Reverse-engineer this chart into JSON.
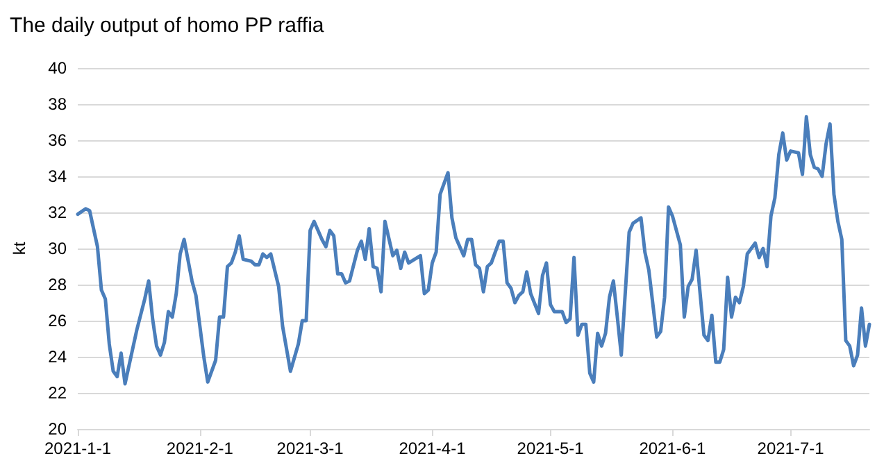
{
  "chart_data": {
    "type": "line",
    "title": "The daily output of homo PP raffia",
    "ylabel": "kt",
    "x": [
      "2021-01-01",
      "2021-01-03",
      "2021-01-04",
      "2021-01-06",
      "2021-01-07",
      "2021-01-08",
      "2021-01-09",
      "2021-01-10",
      "2021-01-11",
      "2021-01-12",
      "2021-01-13",
      "2021-01-16",
      "2021-01-18",
      "2021-01-19",
      "2021-01-20",
      "2021-01-21",
      "2021-01-22",
      "2021-01-23",
      "2021-01-24",
      "2021-01-25",
      "2021-01-26",
      "2021-01-27",
      "2021-01-28",
      "2021-01-30",
      "2021-01-31",
      "2021-02-02",
      "2021-02-03",
      "2021-02-05",
      "2021-02-06",
      "2021-02-07",
      "2021-02-08",
      "2021-02-09",
      "2021-02-10",
      "2021-02-11",
      "2021-02-12",
      "2021-02-14",
      "2021-02-15",
      "2021-02-16",
      "2021-02-17",
      "2021-02-18",
      "2021-02-19",
      "2021-02-21",
      "2021-02-22",
      "2021-02-24",
      "2021-02-26",
      "2021-02-27",
      "2021-02-28",
      "2021-03-01",
      "2021-03-02",
      "2021-03-04",
      "2021-03-05",
      "2021-03-06",
      "2021-03-07",
      "2021-03-08",
      "2021-03-09",
      "2021-03-10",
      "2021-03-11",
      "2021-03-13",
      "2021-03-14",
      "2021-03-15",
      "2021-03-16",
      "2021-03-17",
      "2021-03-18",
      "2021-03-19",
      "2021-03-20",
      "2021-03-22",
      "2021-03-23",
      "2021-03-24",
      "2021-03-25",
      "2021-03-26",
      "2021-03-29",
      "2021-03-30",
      "2021-03-31",
      "2021-04-01",
      "2021-04-02",
      "2021-04-03",
      "2021-04-05",
      "2021-04-06",
      "2021-04-07",
      "2021-04-09",
      "2021-04-10",
      "2021-04-11",
      "2021-04-12",
      "2021-04-13",
      "2021-04-14",
      "2021-04-15",
      "2021-04-16",
      "2021-04-18",
      "2021-04-19",
      "2021-04-20",
      "2021-04-21",
      "2021-04-22",
      "2021-04-23",
      "2021-04-24",
      "2021-04-25",
      "2021-04-26",
      "2021-04-28",
      "2021-04-29",
      "2021-04-30",
      "2021-05-01",
      "2021-05-02",
      "2021-05-04",
      "2021-05-05",
      "2021-05-06",
      "2021-05-07",
      "2021-05-08",
      "2021-05-09",
      "2021-05-10",
      "2021-05-11",
      "2021-05-12",
      "2021-05-13",
      "2021-05-14",
      "2021-05-15",
      "2021-05-16",
      "2021-05-17",
      "2021-05-18",
      "2021-05-19",
      "2021-05-21",
      "2021-05-22",
      "2021-05-24",
      "2021-05-25",
      "2021-05-26",
      "2021-05-28",
      "2021-05-29",
      "2021-05-30",
      "2021-05-31",
      "2021-06-01",
      "2021-06-03",
      "2021-06-04",
      "2021-06-05",
      "2021-06-06",
      "2021-06-07",
      "2021-06-09",
      "2021-06-10",
      "2021-06-11",
      "2021-06-12",
      "2021-06-13",
      "2021-06-14",
      "2021-06-15",
      "2021-06-16",
      "2021-06-17",
      "2021-06-18",
      "2021-06-19",
      "2021-06-20",
      "2021-06-22",
      "2021-06-23",
      "2021-06-24",
      "2021-06-25",
      "2021-06-26",
      "2021-06-27",
      "2021-06-28",
      "2021-06-29",
      "2021-06-30",
      "2021-07-01",
      "2021-07-03",
      "2021-07-04",
      "2021-07-05",
      "2021-07-06",
      "2021-07-07",
      "2021-07-08",
      "2021-07-09",
      "2021-07-10",
      "2021-07-11",
      "2021-07-12",
      "2021-07-13",
      "2021-07-14",
      "2021-07-15",
      "2021-07-16",
      "2021-07-17",
      "2021-07-18",
      "2021-07-19",
      "2021-07-20",
      "2021-07-21"
    ],
    "series": [
      {
        "color": "#4a7ebb",
        "values": [
          31.9,
          32.2,
          32.1,
          30.1,
          27.7,
          27.2,
          24.7,
          23.2,
          22.9,
          24.2,
          22.5,
          25.5,
          27.2,
          28.2,
          26.1,
          24.6,
          24.1,
          24.8,
          26.5,
          26.2,
          27.5,
          29.7,
          30.5,
          28.2,
          27.4,
          24.0,
          22.6,
          23.8,
          26.2,
          26.2,
          29.0,
          29.2,
          29.8,
          30.7,
          29.4,
          29.3,
          29.1,
          29.1,
          29.7,
          29.5,
          29.7,
          27.9,
          25.7,
          23.2,
          24.7,
          26.0,
          26.0,
          31.0,
          31.5,
          30.5,
          30.1,
          31.0,
          30.7,
          28.6,
          28.6,
          28.1,
          28.2,
          29.9,
          30.4,
          29.4,
          31.1,
          29.0,
          28.9,
          27.6,
          31.5,
          29.6,
          29.9,
          28.9,
          29.8,
          29.2,
          29.6,
          27.5,
          27.7,
          29.2,
          29.8,
          33.0,
          34.2,
          31.7,
          30.6,
          29.6,
          30.5,
          30.5,
          29.1,
          28.9,
          27.6,
          29.0,
          29.2,
          30.4,
          30.4,
          28.1,
          27.8,
          27.0,
          27.4,
          27.6,
          28.7,
          27.5,
          26.4,
          28.5,
          29.2,
          26.9,
          26.5,
          26.5,
          25.9,
          26.1,
          29.5,
          25.2,
          25.8,
          25.8,
          23.1,
          22.6,
          25.3,
          24.6,
          25.3,
          27.3,
          28.2,
          26.2,
          24.1,
          30.9,
          31.4,
          31.7,
          29.8,
          28.8,
          25.1,
          25.4,
          27.3,
          32.3,
          31.8,
          30.2,
          26.2,
          27.9,
          28.3,
          29.9,
          25.2,
          24.9,
          26.3,
          23.7,
          23.7,
          24.4,
          28.4,
          26.2,
          27.3,
          27.0,
          27.9,
          29.7,
          30.3,
          29.5,
          30.0,
          29.0,
          31.8,
          32.8,
          35.2,
          36.4,
          34.9,
          35.4,
          35.3,
          34.1,
          37.3,
          35.2,
          34.5,
          34.4,
          34.0,
          35.8,
          36.9,
          33.0,
          31.5,
          30.5,
          24.9,
          24.6,
          23.5,
          24.1,
          26.7,
          24.6,
          25.8
        ]
      }
    ],
    "xlim": [
      "2021-01-01",
      "2021-07-21"
    ],
    "xticks": [
      {
        "value": "2021-01-01",
        "label": "2021-1-1"
      },
      {
        "value": "2021-02-01",
        "label": "2021-2-1"
      },
      {
        "value": "2021-03-01",
        "label": "2021-3-1"
      },
      {
        "value": "2021-04-01",
        "label": "2021-4-1"
      },
      {
        "value": "2021-05-01",
        "label": "2021-5-1"
      },
      {
        "value": "2021-06-01",
        "label": "2021-6-1"
      },
      {
        "value": "2021-07-01",
        "label": "2021-7-1"
      }
    ],
    "ylim": [
      20,
      40
    ],
    "yticks": [
      20,
      22,
      24,
      26,
      28,
      30,
      32,
      34,
      36,
      38,
      40
    ],
    "grid": "y",
    "marker": "none",
    "line_style": "solid"
  }
}
